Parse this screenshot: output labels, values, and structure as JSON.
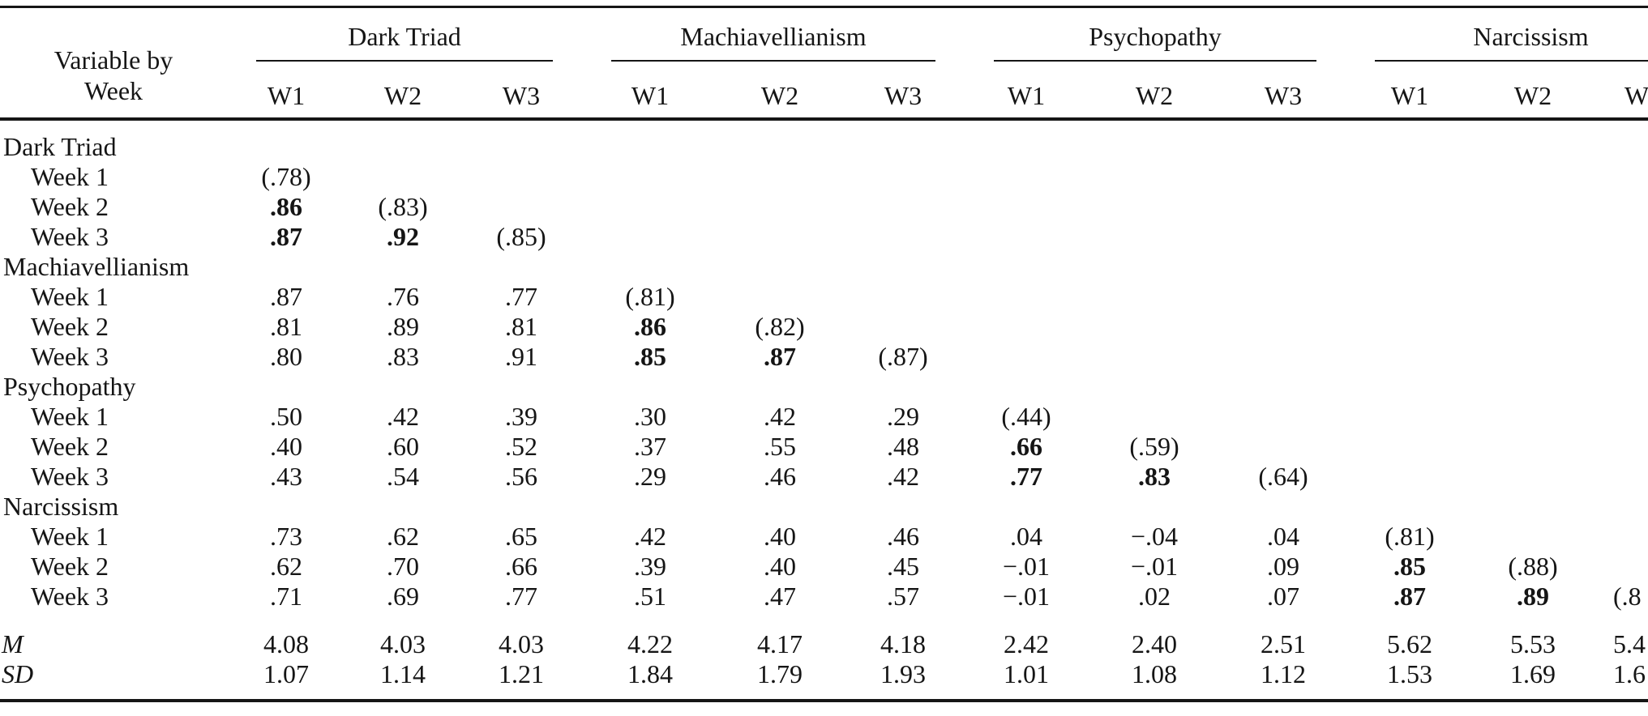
{
  "table": {
    "stub_header": [
      "Variable by",
      "Week"
    ],
    "groups": [
      "Dark Triad",
      "Machiavellianism",
      "Psychopathy",
      "Narcissism"
    ],
    "week_cols": [
      "W1",
      "W2",
      "W3",
      "W1",
      "W2",
      "W3",
      "W1",
      "W2",
      "W3",
      "W1",
      "W2",
      "W"
    ],
    "rows": [
      {
        "type": "section",
        "label": "Dark Triad",
        "cells": [
          "",
          "",
          "",
          "",
          "",
          "",
          "",
          "",
          "",
          "",
          "",
          ""
        ],
        "bold": []
      },
      {
        "type": "week",
        "label": "Week 1",
        "cells": [
          "(.78)",
          "",
          "",
          "",
          "",
          "",
          "",
          "",
          "",
          "",
          "",
          ""
        ],
        "bold": []
      },
      {
        "type": "week",
        "label": "Week 2",
        "cells": [
          ".86",
          "(.83)",
          "",
          "",
          "",
          "",
          "",
          "",
          "",
          "",
          "",
          ""
        ],
        "bold": [
          0
        ]
      },
      {
        "type": "week",
        "label": "Week 3",
        "cells": [
          ".87",
          ".92",
          "(.85)",
          "",
          "",
          "",
          "",
          "",
          "",
          "",
          "",
          ""
        ],
        "bold": [
          0,
          1
        ]
      },
      {
        "type": "section",
        "label": "Machiavellianism",
        "cells": [
          "",
          "",
          "",
          "",
          "",
          "",
          "",
          "",
          "",
          "",
          "",
          ""
        ],
        "bold": []
      },
      {
        "type": "week",
        "label": "Week 1",
        "cells": [
          ".87",
          ".76",
          ".77",
          "(.81)",
          "",
          "",
          "",
          "",
          "",
          "",
          "",
          ""
        ],
        "bold": []
      },
      {
        "type": "week",
        "label": "Week 2",
        "cells": [
          ".81",
          ".89",
          ".81",
          ".86",
          "(.82)",
          "",
          "",
          "",
          "",
          "",
          "",
          ""
        ],
        "bold": [
          3
        ]
      },
      {
        "type": "week",
        "label": "Week 3",
        "cells": [
          ".80",
          ".83",
          ".91",
          ".85",
          ".87",
          "(.87)",
          "",
          "",
          "",
          "",
          "",
          ""
        ],
        "bold": [
          3,
          4
        ]
      },
      {
        "type": "section",
        "label": "Psychopathy",
        "cells": [
          "",
          "",
          "",
          "",
          "",
          "",
          "",
          "",
          "",
          "",
          "",
          ""
        ],
        "bold": []
      },
      {
        "type": "week",
        "label": "Week 1",
        "cells": [
          ".50",
          ".42",
          ".39",
          ".30",
          ".42",
          ".29",
          "(.44)",
          "",
          "",
          "",
          "",
          ""
        ],
        "bold": []
      },
      {
        "type": "week",
        "label": "Week 2",
        "cells": [
          ".40",
          ".60",
          ".52",
          ".37",
          ".55",
          ".48",
          ".66",
          "(.59)",
          "",
          "",
          "",
          ""
        ],
        "bold": [
          6
        ]
      },
      {
        "type": "week",
        "label": "Week 3",
        "cells": [
          ".43",
          ".54",
          ".56",
          ".29",
          ".46",
          ".42",
          ".77",
          ".83",
          "(.64)",
          "",
          "",
          ""
        ],
        "bold": [
          6,
          7
        ]
      },
      {
        "type": "section",
        "label": "Narcissism",
        "cells": [
          "",
          "",
          "",
          "",
          "",
          "",
          "",
          "",
          "",
          "",
          "",
          ""
        ],
        "bold": []
      },
      {
        "type": "week",
        "label": "Week 1",
        "cells": [
          ".73",
          ".62",
          ".65",
          ".42",
          ".40",
          ".46",
          ".04",
          "−.04",
          ".04",
          "(.81)",
          "",
          ""
        ],
        "bold": []
      },
      {
        "type": "week",
        "label": "Week 2",
        "cells": [
          ".62",
          ".70",
          ".66",
          ".39",
          ".40",
          ".45",
          "−.01",
          "−.01",
          ".09",
          ".85",
          "(.88)",
          ""
        ],
        "bold": [
          9
        ]
      },
      {
        "type": "week",
        "label": "Week 3",
        "cells": [
          ".71",
          ".69",
          ".77",
          ".51",
          ".47",
          ".57",
          "−.01",
          ".02",
          ".07",
          ".87",
          ".89",
          "(.8"
        ],
        "bold": [
          9,
          10
        ],
        "cut_last": true
      },
      {
        "type": "stat",
        "label": "M",
        "cells": [
          "4.08",
          "4.03",
          "4.03",
          "4.22",
          "4.17",
          "4.18",
          "2.42",
          "2.40",
          "2.51",
          "5.62",
          "5.53",
          "5.4"
        ],
        "bold": [],
        "gap": true,
        "cut_last": true
      },
      {
        "type": "stat",
        "label": "SD",
        "cells": [
          "1.07",
          "1.14",
          "1.21",
          "1.84",
          "1.79",
          "1.93",
          "1.01",
          "1.08",
          "1.12",
          "1.53",
          "1.69",
          "1.6"
        ],
        "bold": [],
        "cut_last": true
      }
    ]
  }
}
